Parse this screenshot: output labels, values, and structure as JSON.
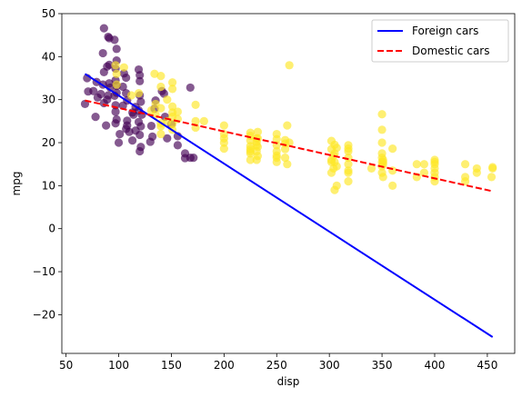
{
  "chart_data": {
    "type": "scatter",
    "xlabel": "disp",
    "ylabel": "mpg",
    "xlim": [
      46,
      476
    ],
    "ylim": [
      -29,
      50
    ],
    "xticks": [
      50,
      100,
      150,
      200,
      250,
      300,
      350,
      400,
      450
    ],
    "yticks": [
      -20,
      -10,
      0,
      10,
      20,
      30,
      40,
      50
    ],
    "grid": false,
    "legend_position": "top-right",
    "colors": {
      "foreign_points": "#440154",
      "domestic_points": "#fde725",
      "foreign_line": "#0000ff",
      "domestic_line": "#ff0000"
    },
    "series": [
      {
        "kind": "scatter",
        "color": "#440154",
        "points": [
          [
            86,
            46.6
          ],
          [
            90,
            44.6
          ],
          [
            91,
            44.3
          ],
          [
            96,
            43.9
          ],
          [
            98,
            41.8
          ],
          [
            85,
            40.8
          ],
          [
            98,
            39.1
          ],
          [
            91,
            38.1
          ],
          [
            89,
            37.7
          ],
          [
            97,
            37.2
          ],
          [
            119,
            37.0
          ],
          [
            86,
            36.4
          ],
          [
            105,
            36.1
          ],
          [
            120,
            35.7
          ],
          [
            107,
            35.1
          ],
          [
            70,
            35.0
          ],
          [
            97,
            34.5
          ],
          [
            79,
            34.1
          ],
          [
            91,
            33.8
          ],
          [
            120,
            34.3
          ],
          [
            85,
            33.5
          ],
          [
            98,
            33.2
          ],
          [
            92,
            32.8
          ],
          [
            168,
            32.8
          ],
          [
            76,
            32.0
          ],
          [
            71,
            31.9
          ],
          [
            98,
            31.6
          ],
          [
            107,
            31.5
          ],
          [
            83,
            31.3
          ],
          [
            120,
            31.0
          ],
          [
            96,
            30.9
          ],
          [
            80,
            30.5
          ],
          [
            68,
            29.0
          ],
          [
            108,
            29.8
          ],
          [
            135,
            29.8
          ],
          [
            121,
            29.5
          ],
          [
            86,
            29.2
          ],
          [
            97,
            28.7
          ],
          [
            116,
            28.3
          ],
          [
            134,
            27.9
          ],
          [
            97,
            27.2
          ],
          [
            113,
            27.0
          ],
          [
            78,
            26.0
          ],
          [
            122,
            26.5
          ],
          [
            144,
            26.0
          ],
          [
            98,
            25.4
          ],
          [
            108,
            25.1
          ],
          [
            119,
            24.8
          ],
          [
            97,
            24.5
          ],
          [
            88,
            24.0
          ],
          [
            121,
            23.8
          ],
          [
            107,
            23.2
          ],
          [
            116,
            22.8
          ],
          [
            110,
            22.5
          ],
          [
            101,
            22.0
          ],
          [
            120,
            21.8
          ],
          [
            132,
            21.4
          ],
          [
            146,
            21.0
          ],
          [
            113,
            20.5
          ],
          [
            100,
            20.0
          ],
          [
            130,
            20.2
          ],
          [
            156,
            19.4
          ],
          [
            121,
            19.0
          ],
          [
            120,
            18.0
          ],
          [
            163,
            17.5
          ],
          [
            168,
            16.5
          ],
          [
            163,
            16.4
          ],
          [
            171,
            16.5
          ],
          [
            141,
            32.0
          ],
          [
            104,
            33.0
          ],
          [
            143,
            31.4
          ],
          [
            108,
            24.0
          ],
          [
            131,
            23.9
          ],
          [
            119,
            27.5
          ],
          [
            156,
            21.5
          ],
          [
            89,
            30.0
          ],
          [
            104,
            28.6
          ],
          [
            114,
            26.5
          ],
          [
            150,
            24.3
          ],
          [
            90,
            31.0
          ]
        ]
      },
      {
        "kind": "scatter",
        "color": "#fde725",
        "points": [
          [
            97,
            38.0
          ],
          [
            105,
            37.5
          ],
          [
            134,
            36.0
          ],
          [
            98,
            36.0
          ],
          [
            140,
            35.5
          ],
          [
            151,
            34.0
          ],
          [
            98,
            33.5
          ],
          [
            140,
            33.0
          ],
          [
            151,
            32.5
          ],
          [
            119,
            31.5
          ],
          [
            112,
            31.0
          ],
          [
            146,
            30.0
          ],
          [
            135,
            29.0
          ],
          [
            173,
            28.8
          ],
          [
            151,
            28.4
          ],
          [
            140,
            28.0
          ],
          [
            131,
            27.5
          ],
          [
            156,
            27.2
          ],
          [
            151,
            27.0
          ],
          [
            135,
            26.5
          ],
          [
            151,
            26.0
          ],
          [
            156,
            25.5
          ],
          [
            173,
            25.0
          ],
          [
            146,
            25.0
          ],
          [
            140,
            24.5
          ],
          [
            151,
            24.3
          ],
          [
            181,
            25.0
          ],
          [
            140,
            23.8
          ],
          [
            200,
            24.0
          ],
          [
            173,
            23.5
          ],
          [
            151,
            23.0
          ],
          [
            225,
            22.3
          ],
          [
            232,
            22.5
          ],
          [
            250,
            22.0
          ],
          [
            200,
            22.0
          ],
          [
            140,
            22.0
          ],
          [
            225,
            21.6
          ],
          [
            232,
            21.0
          ],
          [
            250,
            20.8
          ],
          [
            258,
            20.6
          ],
          [
            200,
            21.0
          ],
          [
            231,
            20.2
          ],
          [
            250,
            19.4
          ],
          [
            225,
            19.2
          ],
          [
            262,
            20.0
          ],
          [
            200,
            20.0
          ],
          [
            225,
            18.5
          ],
          [
            232,
            19.0
          ],
          [
            250,
            18.0
          ],
          [
            258,
            18.5
          ],
          [
            200,
            18.6
          ],
          [
            231,
            18.0
          ],
          [
            225,
            17.5
          ],
          [
            250,
            17.0
          ],
          [
            258,
            16.5
          ],
          [
            231,
            16.0
          ],
          [
            250,
            15.5
          ],
          [
            225,
            16.0
          ],
          [
            260,
            15.0
          ],
          [
            225,
            18.0
          ],
          [
            260,
            24.0
          ],
          [
            262,
            38.0
          ],
          [
            302,
            20.4
          ],
          [
            305,
            19.5
          ],
          [
            318,
            19.4
          ],
          [
            307,
            18.8
          ],
          [
            302,
            18.5
          ],
          [
            318,
            18.0
          ],
          [
            305,
            17.5
          ],
          [
            304,
            17.0
          ],
          [
            318,
            16.5
          ],
          [
            302,
            16.0
          ],
          [
            305,
            15.5
          ],
          [
            318,
            15.0
          ],
          [
            307,
            14.5
          ],
          [
            304,
            14.0
          ],
          [
            318,
            13.5
          ],
          [
            302,
            13.0
          ],
          [
            305,
            9.0
          ],
          [
            307,
            10.0
          ],
          [
            318,
            11.0
          ],
          [
            350,
            26.6
          ],
          [
            350,
            23.0
          ],
          [
            350,
            20.0
          ],
          [
            360,
            18.6
          ],
          [
            350,
            17.5
          ],
          [
            350,
            16.5
          ],
          [
            351,
            16.0
          ],
          [
            350,
            15.5
          ],
          [
            351,
            15.0
          ],
          [
            350,
            14.5
          ],
          [
            340,
            14.0
          ],
          [
            360,
            13.5
          ],
          [
            350,
            13.0
          ],
          [
            351,
            12.0
          ],
          [
            360,
            10.0
          ],
          [
            383,
            15.0
          ],
          [
            390,
            15.0
          ],
          [
            400,
            16.0
          ],
          [
            400,
            15.5
          ],
          [
            400,
            15.0
          ],
          [
            400,
            14.0
          ],
          [
            400,
            13.0
          ],
          [
            400,
            12.0
          ],
          [
            400,
            11.0
          ],
          [
            383,
            12.0
          ],
          [
            390,
            13.0
          ],
          [
            429,
            15.0
          ],
          [
            440,
            14.0
          ],
          [
            455,
            14.0
          ],
          [
            454,
            12.0
          ],
          [
            429,
            12.0
          ],
          [
            440,
            13.0
          ],
          [
            455,
            14.3
          ],
          [
            429,
            11.0
          ],
          [
            318,
            18.6
          ],
          [
            231,
            19.4
          ],
          [
            225,
            20.5
          ],
          [
            258,
            19.8
          ],
          [
            231,
            21.0
          ],
          [
            250,
            16.5
          ],
          [
            232,
            16.9
          ],
          [
            302,
            15.5
          ],
          [
            351,
            15.5
          ],
          [
            318,
            13.0
          ]
        ]
      },
      {
        "kind": "line",
        "name": "Foreign cars",
        "color": "#0000ff",
        "style": "solid",
        "x": [
          68,
          455
        ],
        "y": [
          36.0,
          -25.2
        ]
      },
      {
        "kind": "line",
        "name": "Domestic cars",
        "color": "#ff0000",
        "style": "dashed",
        "x": [
          68,
          455
        ],
        "y": [
          29.8,
          8.7
        ]
      }
    ]
  }
}
